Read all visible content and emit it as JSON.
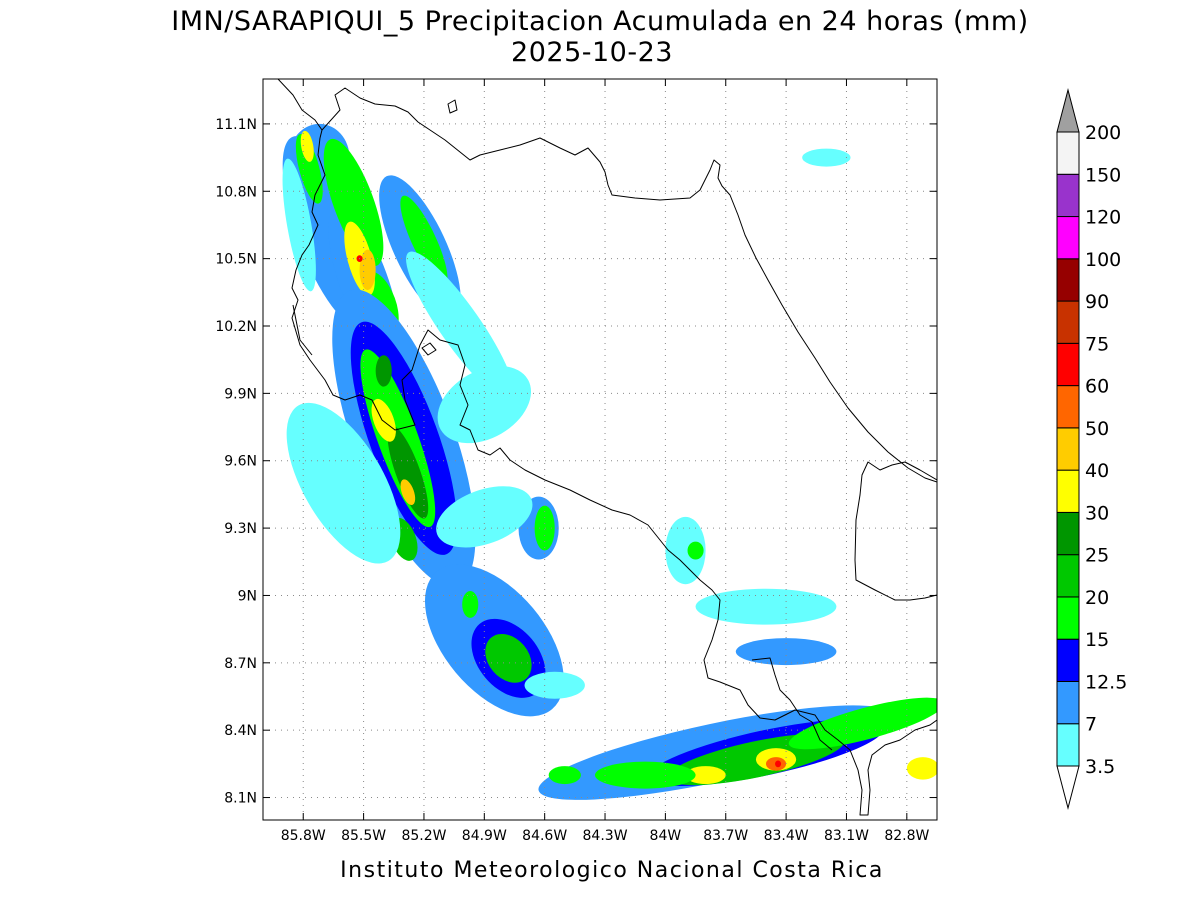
{
  "title": {
    "line1": "IMN/SARAPIQUI_5 Precipitacion Acumulada en 24 horas (mm)",
    "line2": "2025-10-23"
  },
  "credit": "Instituto Meteorologico Nacional Costa Rica",
  "map": {
    "lon_range": [
      -86.0,
      -82.65
    ],
    "lat_range": [
      8.0,
      11.3
    ],
    "lon_ticks": [
      {
        "value": -85.8,
        "label": "85.8W"
      },
      {
        "value": -85.5,
        "label": "85.5W"
      },
      {
        "value": -85.2,
        "label": "85.2W"
      },
      {
        "value": -84.9,
        "label": "84.9W"
      },
      {
        "value": -84.6,
        "label": "84.6W"
      },
      {
        "value": -84.3,
        "label": "84.3W"
      },
      {
        "value": -84.0,
        "label": "84W"
      },
      {
        "value": -83.7,
        "label": "83.7W"
      },
      {
        "value": -83.4,
        "label": "83.4W"
      },
      {
        "value": -83.1,
        "label": "83.1W"
      },
      {
        "value": -82.8,
        "label": "82.8W"
      }
    ],
    "lat_ticks": [
      {
        "value": 11.1,
        "label": "11.1N"
      },
      {
        "value": 10.8,
        "label": "10.8N"
      },
      {
        "value": 10.5,
        "label": "10.5N"
      },
      {
        "value": 10.2,
        "label": "10.2N"
      },
      {
        "value": 9.9,
        "label": "9.9N"
      },
      {
        "value": 9.6,
        "label": "9.6N"
      },
      {
        "value": 9.3,
        "label": "9.3N"
      },
      {
        "value": 9.0,
        "label": "9N"
      },
      {
        "value": 8.7,
        "label": "8.7N"
      },
      {
        "value": 8.4,
        "label": "8.4N"
      },
      {
        "value": 8.1,
        "label": "8.1N"
      }
    ],
    "grid": "dotted"
  },
  "colorbar": {
    "orientation": "vertical",
    "placement": "right",
    "levels": [
      {
        "label": "3.5",
        "color": "#ffffff"
      },
      {
        "label": "7",
        "color": "#66ffff"
      },
      {
        "label": "12.5",
        "color": "#3399ff"
      },
      {
        "label": "15",
        "color": "#0000ff"
      },
      {
        "label": "20",
        "color": "#00ff00"
      },
      {
        "label": "25",
        "color": "#00c800"
      },
      {
        "label": "30",
        "color": "#009600"
      },
      {
        "label": "40",
        "color": "#ffff00"
      },
      {
        "label": "50",
        "color": "#ffcc00"
      },
      {
        "label": "60",
        "color": "#ff6600"
      },
      {
        "label": "75",
        "color": "#ff0000"
      },
      {
        "label": "90",
        "color": "#c83200"
      },
      {
        "label": "100",
        "color": "#960000"
      },
      {
        "label": "120",
        "color": "#ff00ff"
      },
      {
        "label": "150",
        "color": "#9933cc"
      },
      {
        "label": "200",
        "color": "#f4f4f4"
      }
    ],
    "top_arrow_color": "#a0a0a0",
    "bottom_arrow_color": "#ffffff"
  },
  "precip_cells": [
    {
      "lon": -85.72,
      "lat": 10.95,
      "rx": 0.15,
      "ry": 0.15,
      "rot": 0,
      "mm": 8
    },
    {
      "lon": -85.68,
      "lat": 10.62,
      "rx": 0.15,
      "ry": 0.45,
      "rot": -20,
      "mm": 8
    },
    {
      "lon": -85.5,
      "lat": 10.4,
      "rx": 0.12,
      "ry": 0.35,
      "rot": -20,
      "mm": 12
    },
    {
      "lon": -85.55,
      "lat": 10.75,
      "rx": 0.1,
      "ry": 0.3,
      "rot": -20,
      "mm": 18
    },
    {
      "lon": -85.42,
      "lat": 10.3,
      "rx": 0.08,
      "ry": 0.15,
      "rot": -20,
      "mm": 18
    },
    {
      "lon": -85.77,
      "lat": 10.9,
      "rx": 0.05,
      "ry": 0.16,
      "rot": -15,
      "mm": 18
    },
    {
      "lon": -85.52,
      "lat": 10.5,
      "rx": 0.06,
      "ry": 0.17,
      "rot": -15,
      "mm": 35
    },
    {
      "lon": -85.48,
      "lat": 10.45,
      "rx": 0.04,
      "ry": 0.09,
      "rot": 0,
      "mm": 45
    },
    {
      "lon": -85.52,
      "lat": 10.5,
      "rx": 0.015,
      "ry": 0.015,
      "rot": 0,
      "mm": 65
    },
    {
      "lon": -85.78,
      "lat": 11.0,
      "rx": 0.03,
      "ry": 0.07,
      "rot": -10,
      "mm": 35
    },
    {
      "lon": -85.82,
      "lat": 10.65,
      "rx": 0.06,
      "ry": 0.3,
      "rot": -10,
      "mm": 6
    },
    {
      "lon": -85.22,
      "lat": 10.55,
      "rx": 0.13,
      "ry": 0.35,
      "rot": -25,
      "mm": 8
    },
    {
      "lon": -85.2,
      "lat": 10.58,
      "rx": 0.06,
      "ry": 0.22,
      "rot": -25,
      "mm": 18
    },
    {
      "lon": -85.02,
      "lat": 10.2,
      "rx": 0.1,
      "ry": 0.4,
      "rot": -35,
      "mm": 5
    },
    {
      "lon": -85.3,
      "lat": 9.7,
      "rx": 0.25,
      "ry": 0.7,
      "rot": -20,
      "mm": 8
    },
    {
      "lon": -85.3,
      "lat": 9.7,
      "rx": 0.17,
      "ry": 0.55,
      "rot": -20,
      "mm": 14
    },
    {
      "lon": -85.33,
      "lat": 9.7,
      "rx": 0.1,
      "ry": 0.42,
      "rot": -20,
      "mm": 18
    },
    {
      "lon": -85.28,
      "lat": 9.55,
      "rx": 0.06,
      "ry": 0.22,
      "rot": -20,
      "mm": 26
    },
    {
      "lon": -85.4,
      "lat": 9.78,
      "rx": 0.05,
      "ry": 0.1,
      "rot": -20,
      "mm": 35
    },
    {
      "lon": -85.28,
      "lat": 9.46,
      "rx": 0.03,
      "ry": 0.06,
      "rot": -20,
      "mm": 45
    },
    {
      "lon": -85.4,
      "lat": 10.0,
      "rx": 0.04,
      "ry": 0.07,
      "rot": 0,
      "mm": 26
    },
    {
      "lon": -85.3,
      "lat": 9.25,
      "rx": 0.06,
      "ry": 0.1,
      "rot": -20,
      "mm": 20
    },
    {
      "lon": -85.6,
      "lat": 9.5,
      "rx": 0.2,
      "ry": 0.4,
      "rot": -30,
      "mm": 5
    },
    {
      "lon": -84.9,
      "lat": 9.85,
      "rx": 0.25,
      "ry": 0.15,
      "rot": -30,
      "mm": 5
    },
    {
      "lon": -84.63,
      "lat": 9.3,
      "rx": 0.1,
      "ry": 0.14,
      "rot": 0,
      "mm": 9
    },
    {
      "lon": -84.6,
      "lat": 9.3,
      "rx": 0.05,
      "ry": 0.1,
      "rot": 0,
      "mm": 18
    },
    {
      "lon": -84.9,
      "lat": 9.35,
      "rx": 0.25,
      "ry": 0.12,
      "rot": -20,
      "mm": 5
    },
    {
      "lon": -84.85,
      "lat": 8.8,
      "rx": 0.25,
      "ry": 0.4,
      "rot": -40,
      "mm": 7
    },
    {
      "lon": -84.78,
      "lat": 8.72,
      "rx": 0.15,
      "ry": 0.2,
      "rot": -40,
      "mm": 14
    },
    {
      "lon": -84.78,
      "lat": 8.72,
      "rx": 0.1,
      "ry": 0.12,
      "rot": -40,
      "mm": 20
    },
    {
      "lon": -84.97,
      "lat": 8.96,
      "rx": 0.04,
      "ry": 0.06,
      "rot": 0,
      "mm": 18
    },
    {
      "lon": -84.55,
      "lat": 8.6,
      "rx": 0.15,
      "ry": 0.06,
      "rot": 0,
      "mm": 5
    },
    {
      "lon": -83.9,
      "lat": 9.2,
      "rx": 0.1,
      "ry": 0.15,
      "rot": 0,
      "mm": 5
    },
    {
      "lon": -83.85,
      "lat": 9.2,
      "rx": 0.04,
      "ry": 0.04,
      "rot": 0,
      "mm": 18
    },
    {
      "lon": -83.5,
      "lat": 8.95,
      "rx": 0.35,
      "ry": 0.08,
      "rot": 0,
      "mm": 6
    },
    {
      "lon": -83.4,
      "lat": 8.75,
      "rx": 0.25,
      "ry": 0.06,
      "rot": 0,
      "mm": 8
    },
    {
      "lon": -83.2,
      "lat": 10.95,
      "rx": 0.12,
      "ry": 0.04,
      "rot": 0,
      "mm": 5
    },
    {
      "lon": -83.75,
      "lat": 8.3,
      "rx": 0.9,
      "ry": 0.13,
      "rot": -12,
      "mm": 8
    },
    {
      "lon": -83.5,
      "lat": 8.3,
      "rx": 0.6,
      "ry": 0.1,
      "rot": -12,
      "mm": 14
    },
    {
      "lon": -83.55,
      "lat": 8.27,
      "rx": 0.45,
      "ry": 0.08,
      "rot": -12,
      "mm": 22
    },
    {
      "lon": -83.8,
      "lat": 8.2,
      "rx": 0.1,
      "ry": 0.04,
      "rot": 0,
      "mm": 35
    },
    {
      "lon": -83.45,
      "lat": 8.27,
      "rx": 0.1,
      "ry": 0.05,
      "rot": 0,
      "mm": 35
    },
    {
      "lon": -83.45,
      "lat": 8.25,
      "rx": 0.05,
      "ry": 0.03,
      "rot": 0,
      "mm": 55
    },
    {
      "lon": -83.44,
      "lat": 8.25,
      "rx": 0.015,
      "ry": 0.015,
      "rot": 0,
      "mm": 70
    },
    {
      "lon": -83.0,
      "lat": 8.43,
      "rx": 0.4,
      "ry": 0.07,
      "rot": -15,
      "mm": 16
    },
    {
      "lon": -82.72,
      "lat": 8.23,
      "rx": 0.08,
      "ry": 0.05,
      "rot": 0,
      "mm": 35
    },
    {
      "lon": -84.1,
      "lat": 8.2,
      "rx": 0.25,
      "ry": 0.06,
      "rot": 0,
      "mm": 16
    },
    {
      "lon": -84.5,
      "lat": 8.2,
      "rx": 0.08,
      "ry": 0.04,
      "rot": 0,
      "mm": 16
    }
  ]
}
